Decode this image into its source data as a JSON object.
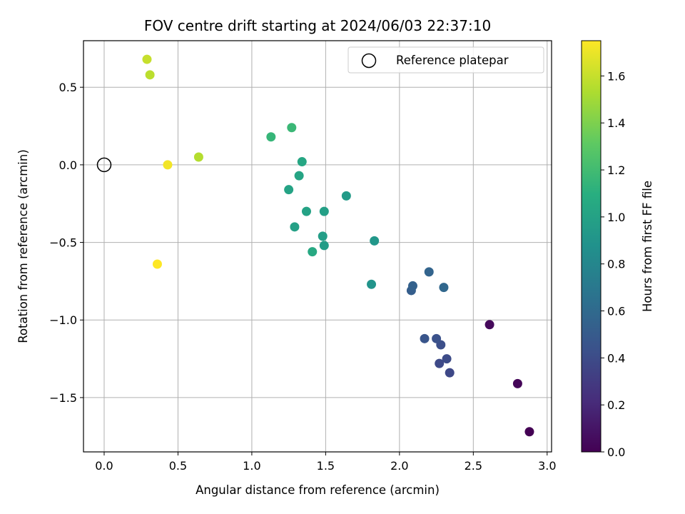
{
  "chart_data": {
    "type": "scatter",
    "title": "FOV centre drift starting at 2024/06/03 22:37:10",
    "xlabel": "Angular distance from reference (arcmin)",
    "ylabel": "Rotation from reference (arcmin)",
    "xlim": [
      -0.14,
      3.03
    ],
    "ylim": [
      -1.85,
      0.8
    ],
    "xticks": [
      0.0,
      0.5,
      1.0,
      1.5,
      2.0,
      2.5,
      3.0
    ],
    "xtick_labels": [
      "0.0",
      "0.5",
      "1.0",
      "1.5",
      "2.0",
      "2.5",
      "3.0"
    ],
    "yticks": [
      0.5,
      0.0,
      -0.5,
      -1.0,
      -1.5
    ],
    "ytick_labels": [
      "0.5",
      "0.0",
      "−0.5",
      "−1.0",
      "−1.5"
    ],
    "grid": true,
    "colormap": "viridis",
    "colorbar": {
      "label": "Hours from first FF file",
      "range": [
        0.0,
        1.75
      ],
      "ticks": [
        0.0,
        0.2,
        0.4,
        0.6,
        0.8,
        1.0,
        1.2,
        1.4,
        1.6
      ],
      "tick_labels": [
        "0.0",
        "0.2",
        "0.4",
        "0.6",
        "0.8",
        "1.0",
        "1.2",
        "1.4",
        "1.6"
      ]
    },
    "legend": {
      "placement": "upper right",
      "entries": [
        {
          "label": "Reference platepar",
          "marker": "open-circle"
        }
      ]
    },
    "reference_point": {
      "x": 0.0,
      "y": 0.0
    },
    "points": [
      {
        "x": 2.88,
        "y": -1.72,
        "c": 0.0
      },
      {
        "x": 2.8,
        "y": -1.41,
        "c": 0.02
      },
      {
        "x": 2.61,
        "y": -1.03,
        "c": 0.04
      },
      {
        "x": 2.34,
        "y": -1.34,
        "c": 0.38
      },
      {
        "x": 2.27,
        "y": -1.28,
        "c": 0.39
      },
      {
        "x": 2.32,
        "y": -1.25,
        "c": 0.4
      },
      {
        "x": 2.28,
        "y": -1.16,
        "c": 0.42
      },
      {
        "x": 2.25,
        "y": -1.12,
        "c": 0.44
      },
      {
        "x": 2.17,
        "y": -1.12,
        "c": 0.46
      },
      {
        "x": 2.08,
        "y": -0.81,
        "c": 0.52
      },
      {
        "x": 2.09,
        "y": -0.78,
        "c": 0.54
      },
      {
        "x": 2.2,
        "y": -0.69,
        "c": 0.56
      },
      {
        "x": 2.3,
        "y": -0.79,
        "c": 0.58
      },
      {
        "x": 1.81,
        "y": -0.77,
        "c": 0.9
      },
      {
        "x": 1.83,
        "y": -0.49,
        "c": 0.92
      },
      {
        "x": 1.64,
        "y": -0.2,
        "c": 0.94
      },
      {
        "x": 1.49,
        "y": -0.52,
        "c": 0.96
      },
      {
        "x": 1.48,
        "y": -0.46,
        "c": 0.97
      },
      {
        "x": 1.49,
        "y": -0.3,
        "c": 0.98
      },
      {
        "x": 1.29,
        "y": -0.4,
        "c": 0.99
      },
      {
        "x": 1.37,
        "y": -0.3,
        "c": 1.0
      },
      {
        "x": 1.25,
        "y": -0.16,
        "c": 1.01
      },
      {
        "x": 1.32,
        "y": -0.07,
        "c": 1.02
      },
      {
        "x": 1.34,
        "y": 0.02,
        "c": 1.03
      },
      {
        "x": 1.41,
        "y": -0.56,
        "c": 1.05
      },
      {
        "x": 1.13,
        "y": 0.18,
        "c": 1.15
      },
      {
        "x": 1.27,
        "y": 0.24,
        "c": 1.17
      },
      {
        "x": 0.64,
        "y": 0.05,
        "c": 1.55
      },
      {
        "x": 0.31,
        "y": 0.58,
        "c": 1.57
      },
      {
        "x": 0.29,
        "y": 0.68,
        "c": 1.6
      },
      {
        "x": 0.43,
        "y": 0.0,
        "c": 1.72
      },
      {
        "x": 0.36,
        "y": -0.64,
        "c": 1.75
      }
    ]
  }
}
